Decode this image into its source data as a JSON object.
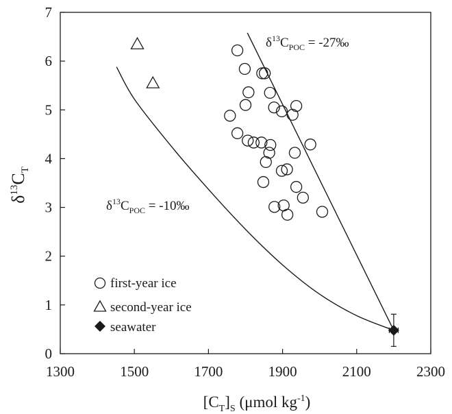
{
  "chart_data": {
    "type": "scatter",
    "title": "",
    "xlabel": {
      "main": "[C",
      "sub1": "T",
      "mid": "]",
      "sub2": "S",
      "unit": " (μmol kg",
      "sup": "-1",
      "end": ")"
    },
    "ylabel": {
      "main": "δ",
      "sup": "13",
      "c": "C",
      "sub": "T"
    },
    "xlim": [
      1300,
      2300
    ],
    "ylim": [
      0,
      7
    ],
    "xticks": [
      "1300",
      "1500",
      "1700",
      "1900",
      "2100",
      "2300"
    ],
    "yticks": [
      "0",
      "1",
      "2",
      "3",
      "4",
      "5",
      "6",
      "7"
    ],
    "grid": false,
    "legend_position": "bottom-left",
    "series": [
      {
        "name": "first-year ice",
        "marker": "circle",
        "points": [
          [
            1778,
            6.22
          ],
          [
            1798,
            5.84
          ],
          [
            1845,
            5.75
          ],
          [
            1852,
            5.75
          ],
          [
            1808,
            5.36
          ],
          [
            1866,
            5.35
          ],
          [
            1937,
            5.08
          ],
          [
            1800,
            5.1
          ],
          [
            1877,
            5.05
          ],
          [
            1898,
            4.97
          ],
          [
            1927,
            4.9
          ],
          [
            1758,
            4.88
          ],
          [
            1778,
            4.52
          ],
          [
            1806,
            4.37
          ],
          [
            1822,
            4.33
          ],
          [
            1843,
            4.33
          ],
          [
            1867,
            4.28
          ],
          [
            1975,
            4.29
          ],
          [
            1864,
            4.12
          ],
          [
            1933,
            4.12
          ],
          [
            1855,
            3.93
          ],
          [
            1912,
            3.78
          ],
          [
            1898,
            3.75
          ],
          [
            1848,
            3.52
          ],
          [
            1937,
            3.42
          ],
          [
            1955,
            3.2
          ],
          [
            1878,
            3.01
          ],
          [
            1903,
            3.04
          ],
          [
            2007,
            2.91
          ],
          [
            1913,
            2.85
          ]
        ]
      },
      {
        "name": "second-year ice",
        "marker": "triangle",
        "points": [
          [
            1508,
            6.35
          ],
          [
            1550,
            5.55
          ]
        ]
      },
      {
        "name": "seawater",
        "marker": "diamond",
        "points": [
          [
            2200,
            0.48
          ]
        ],
        "error": {
          "x": 12,
          "y": 0.33
        }
      }
    ],
    "lines": [
      {
        "label": {
          "d": "δ",
          "sup": "13",
          "c": "C",
          "sub": "POC",
          "val": " = -10‰"
        },
        "points": [
          [
            1452,
            5.88
          ],
          [
            1500,
            5.22
          ],
          [
            1600,
            4.25
          ],
          [
            1700,
            3.37
          ],
          [
            1800,
            2.55
          ],
          [
            1900,
            1.82
          ],
          [
            2000,
            1.22
          ],
          [
            2100,
            0.78
          ],
          [
            2200,
            0.48
          ]
        ]
      },
      {
        "label": {
          "d": "δ",
          "sup": "13",
          "c": "C",
          "sub": "POC",
          "val": " = -27‰"
        },
        "points": [
          [
            1805,
            6.58
          ],
          [
            2200,
            0.48
          ]
        ]
      }
    ]
  }
}
